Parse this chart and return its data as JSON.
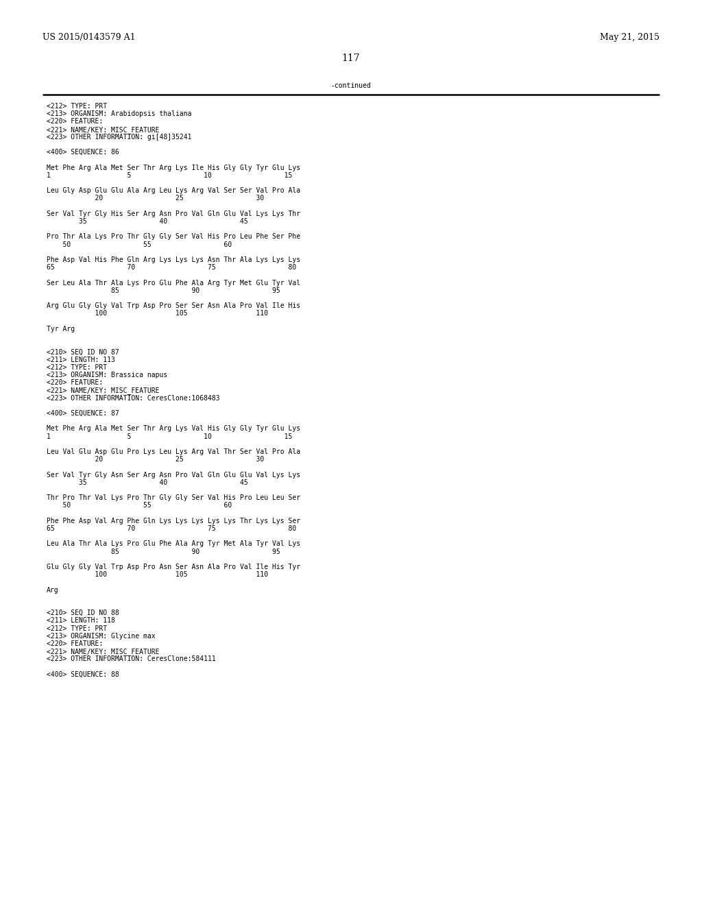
{
  "background_color": "#ffffff",
  "top_left_text": "US 2015/0143579 A1",
  "top_right_text": "May 21, 2015",
  "page_number": "117",
  "continued_text": "-continued",
  "font_size_header": 9.0,
  "font_size_body": 7.0,
  "font_size_page": 10.0,
  "content": [
    "<212> TYPE: PRT",
    "<213> ORGANISM: Arabidopsis thaliana",
    "<220> FEATURE:",
    "<221> NAME/KEY: MISC_FEATURE",
    "<223> OTHER INFORMATION: gi[48]35241",
    "",
    "<400> SEQUENCE: 86",
    "",
    "Met Phe Arg Ala Met Ser Thr Arg Lys Ile His Gly Gly Tyr Glu Lys",
    "1                   5                  10                  15",
    "",
    "Leu Gly Asp Glu Glu Ala Arg Leu Lys Arg Val Ser Ser Val Pro Ala",
    "            20                  25                  30",
    "",
    "Ser Val Tyr Gly His Ser Arg Asn Pro Val Gln Glu Val Lys Lys Thr",
    "        35                  40                  45",
    "",
    "Pro Thr Ala Lys Pro Thr Gly Gly Ser Val His Pro Leu Phe Ser Phe",
    "    50                  55                  60",
    "",
    "Phe Asp Val His Phe Gln Arg Lys Lys Lys Asn Thr Ala Lys Lys Lys",
    "65                  70                  75                  80",
    "",
    "Ser Leu Ala Thr Ala Lys Pro Glu Phe Ala Arg Tyr Met Glu Tyr Val",
    "                85                  90                  95",
    "",
    "Arg Glu Gly Gly Val Trp Asp Pro Ser Ser Asn Ala Pro Val Ile His",
    "            100                 105                 110",
    "",
    "Tyr Arg",
    "",
    "",
    "<210> SEQ ID NO 87",
    "<211> LENGTH: 113",
    "<212> TYPE: PRT",
    "<213> ORGANISM: Brassica napus",
    "<220> FEATURE:",
    "<221> NAME/KEY: MISC_FEATURE",
    "<223> OTHER INFORMATION: CeresClone:1068483",
    "",
    "<400> SEQUENCE: 87",
    "",
    "Met Phe Arg Ala Met Ser Thr Arg Lys Val His Gly Gly Tyr Glu Lys",
    "1                   5                  10                  15",
    "",
    "Leu Val Glu Asp Glu Pro Lys Leu Lys Arg Val Thr Ser Val Pro Ala",
    "            20                  25                  30",
    "",
    "Ser Val Tyr Gly Asn Ser Arg Asn Pro Val Gln Glu Glu Val Lys Lys",
    "        35                  40                  45",
    "",
    "Thr Pro Thr Val Lys Pro Thr Gly Gly Ser Val His Pro Leu Leu Ser",
    "    50                  55                  60",
    "",
    "Phe Phe Asp Val Arg Phe Gln Lys Lys Lys Lys Lys Thr Lys Lys Ser",
    "65                  70                  75                  80",
    "",
    "Leu Ala Thr Ala Lys Pro Glu Phe Ala Arg Tyr Met Ala Tyr Val Lys",
    "                85                  90                  95",
    "",
    "Glu Gly Gly Val Trp Asp Pro Asn Ser Asn Ala Pro Val Ile His Tyr",
    "            100                 105                 110",
    "",
    "Arg",
    "",
    "",
    "<210> SEQ ID NO 88",
    "<211> LENGTH: 118",
    "<212> TYPE: PRT",
    "<213> ORGANISM: Glycine max",
    "<220> FEATURE:",
    "<221> NAME/KEY: MISC_FEATURE",
    "<223> OTHER INFORMATION: CeresClone:584111",
    "",
    "<400> SEQUENCE: 88"
  ]
}
